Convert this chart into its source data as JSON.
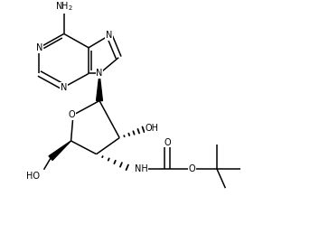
{
  "background": "#ffffff",
  "line_color": "#000000",
  "line_width": 1.1,
  "font_size": 7.0,
  "fig_width": 3.43,
  "fig_height": 2.79,
  "dpi": 100,
  "xlim": [
    0,
    10
  ],
  "ylim": [
    0,
    8
  ]
}
